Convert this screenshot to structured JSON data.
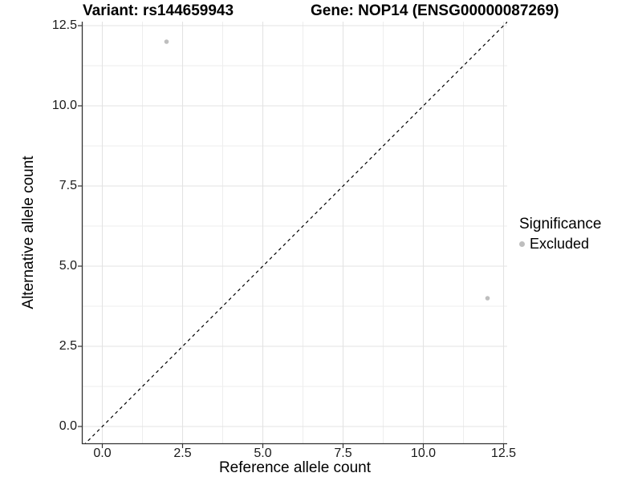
{
  "chart_data": {
    "type": "scatter",
    "title_left": "Variant: rs144659943",
    "title_right": "Gene: NOP14 (ENSG00000087269)",
    "xlabel": "Reference allele count",
    "ylabel": "Alternative allele count",
    "x_ticks": [
      0,
      2.5,
      5,
      7.5,
      10,
      12.5
    ],
    "y_ticks": [
      0,
      2.5,
      5,
      7.5,
      10,
      12.5
    ],
    "x_tick_labels": [
      "0.0",
      "2.5",
      "5.0",
      "7.5",
      "10.0",
      "12.5"
    ],
    "y_tick_labels": [
      "0.0",
      "2.5",
      "5.0",
      "7.5",
      "10.0",
      "12.5"
    ],
    "xlim": [
      -0.6,
      12.6
    ],
    "ylim": [
      -0.55,
      12.6
    ],
    "grid": "major+minor",
    "series": [
      {
        "name": "Excluded",
        "color": "#bebebe",
        "points": [
          {
            "x": 2,
            "y": 12
          },
          {
            "x": 12,
            "y": 4
          }
        ]
      }
    ],
    "identity_line": {
      "slope": 1,
      "intercept": 0,
      "style": "dashed",
      "color": "#000000"
    },
    "legend": {
      "title": "Significance",
      "position": "right",
      "items": [
        {
          "label": "Excluded",
          "color": "#bebebe"
        }
      ]
    },
    "colors": {
      "grid_major": "#e3e3e3",
      "grid_minor": "#eeeeee",
      "axis_line": "#333333",
      "tick": "#333333"
    }
  }
}
